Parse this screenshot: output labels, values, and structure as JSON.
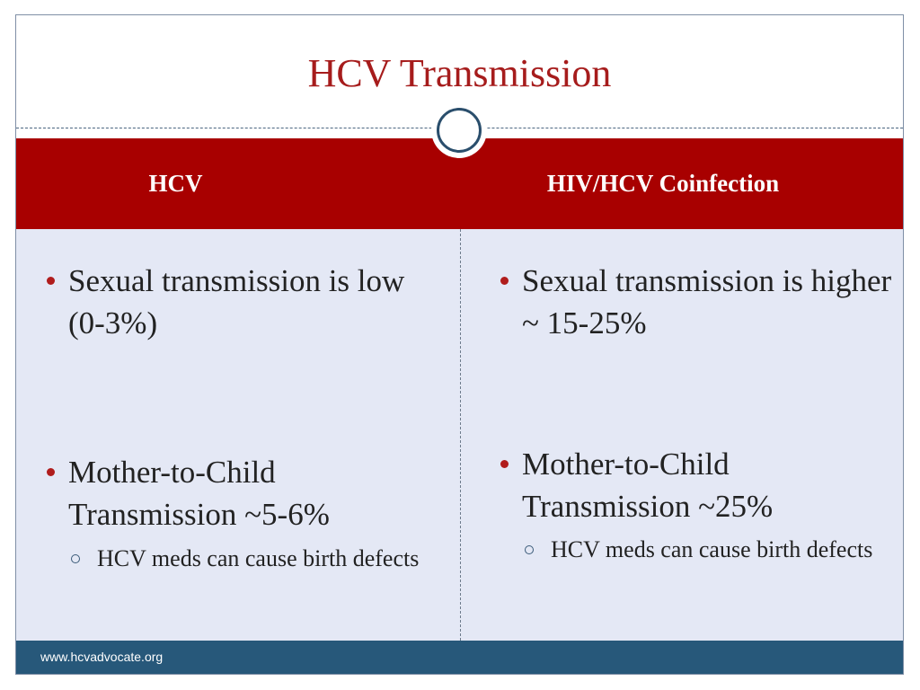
{
  "slide": {
    "title": "HCV Transmission",
    "columns": [
      {
        "header": "HCV",
        "bullets": [
          {
            "text": "Sexual transmission is low  (0-3%)"
          },
          {
            "text": "Mother-to-Child Transmission ~5-6%",
            "sub": "HCV meds can cause birth defects"
          }
        ]
      },
      {
        "header": "HIV/HCV Coinfection",
        "bullets": [
          {
            "text": "Sexual transmission is higher ~ 15-25%"
          },
          {
            "text": "Mother-to-Child Transmission ~25%",
            "sub": "HCV meds can cause birth defects"
          }
        ]
      }
    ],
    "footer": "www.hcvadvocate.org"
  },
  "colors": {
    "title": "#a61c1c",
    "header_band": "#a80000",
    "body_bg": "#e4e8f5",
    "footer_bg": "#27587a",
    "bullet": "#b01c1c"
  },
  "icons": [
    "bullet-dot-icon",
    "sub-bullet-ring-icon",
    "title-ring-ornament-icon"
  ]
}
